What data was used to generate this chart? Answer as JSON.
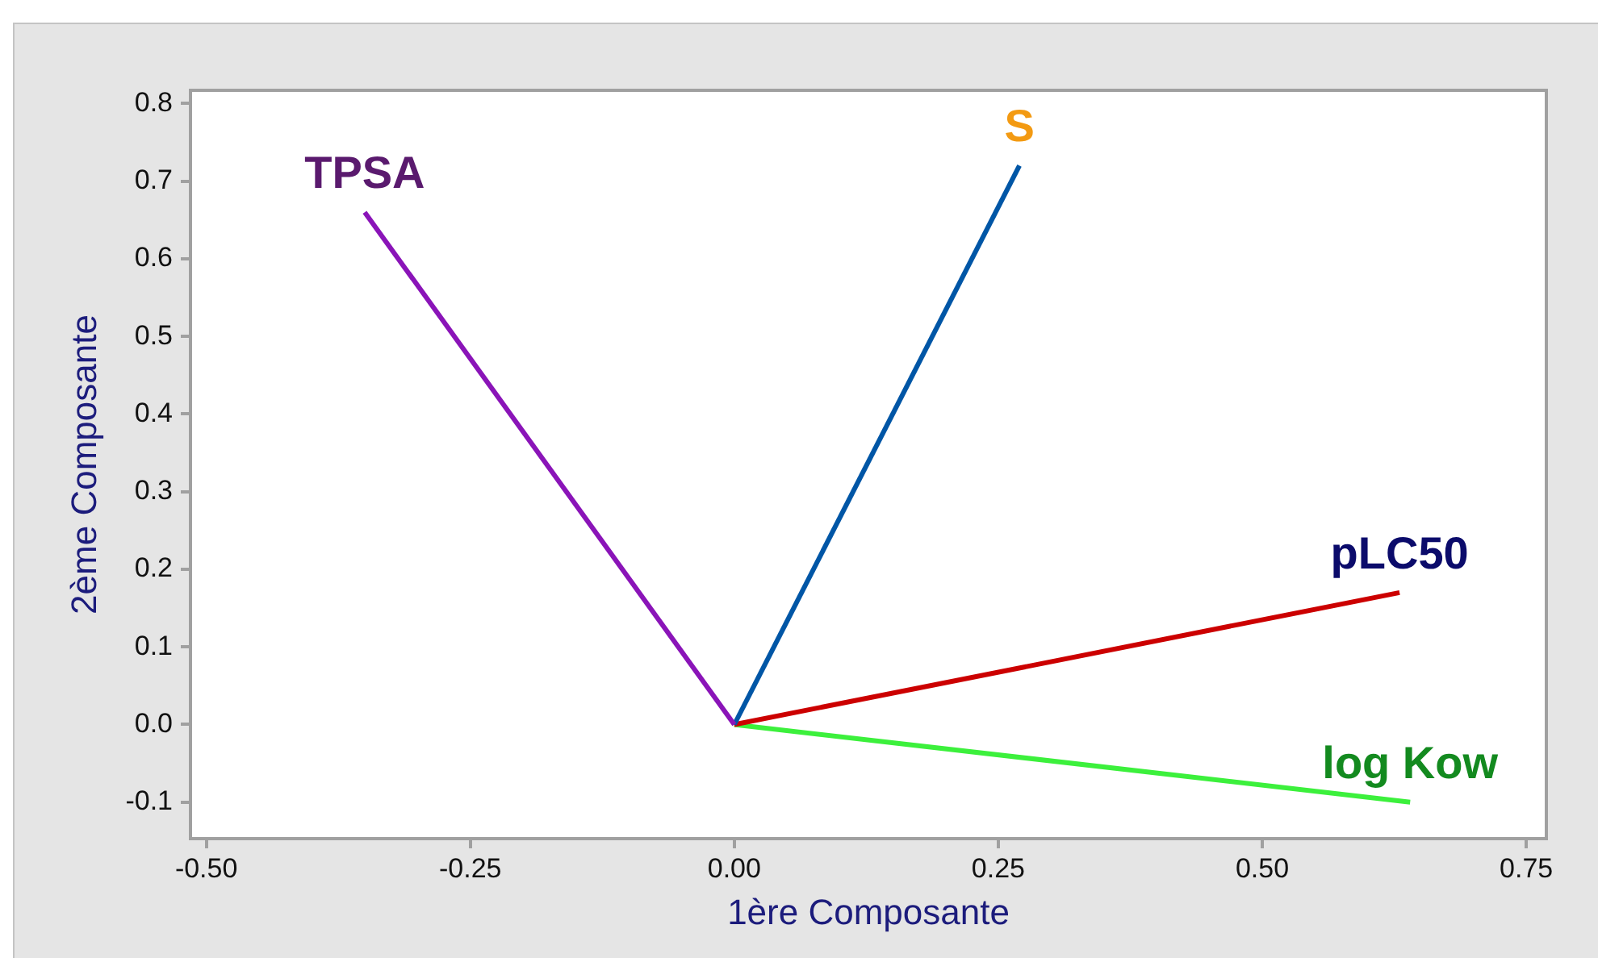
{
  "chart_data": {
    "type": "line",
    "xlabel": "1ère Composante",
    "ylabel": "2ème Composante",
    "series": [
      {
        "name": "TPSA",
        "color": "#8a14b8",
        "x": [
          0,
          -0.35
        ],
        "values": [
          0,
          0.66
        ]
      },
      {
        "name": "S",
        "color": "#0056a6",
        "x": [
          0,
          0.27
        ],
        "values": [
          0,
          0.72
        ]
      },
      {
        "name": "pLC50",
        "color": "#cc0000",
        "x": [
          0,
          0.63
        ],
        "values": [
          0,
          0.17
        ]
      },
      {
        "name": "log Kow",
        "color": "#3cf03c",
        "x": [
          0,
          0.64
        ],
        "values": [
          0,
          -0.1
        ]
      }
    ],
    "xlim": [
      -0.515,
      0.769
    ],
    "ylim": [
      -0.147,
      0.817
    ],
    "xticks": [
      {
        "value": -0.5,
        "label": "-0.50"
      },
      -0.25,
      {
        "value": 0,
        "label": "0.00"
      },
      0.25,
      {
        "value": 0.5,
        "label": "0.50"
      },
      0.75
    ],
    "yticks": [
      -0.1,
      {
        "value": 0,
        "label": "0.0"
      },
      0.1,
      0.2,
      0.3,
      0.4,
      0.5,
      0.6,
      0.7,
      0.8
    ],
    "grid": false,
    "legend": false,
    "marker": "none"
  }
}
